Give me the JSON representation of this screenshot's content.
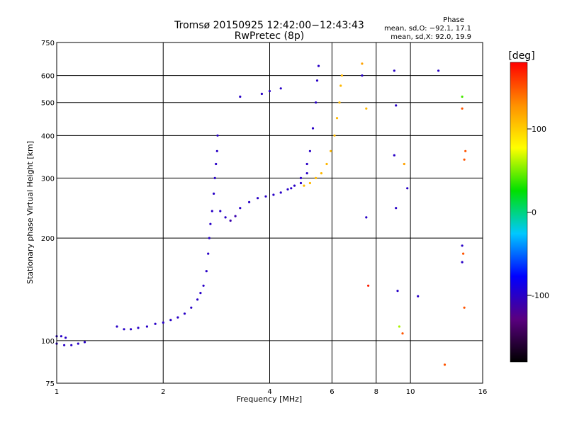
{
  "chart_data": {
    "type": "scatter",
    "title": "Tromsø 20150925 12:42:00−12:43:43",
    "subtitle": "RwPretec (8p)",
    "xlabel": "Frequency [MHz]",
    "ylabel": "Stationary phase Virtual Height [km]",
    "x_scale": "log",
    "y_scale": "log",
    "xlim": [
      1,
      16
    ],
    "ylim": [
      75,
      750
    ],
    "x_ticks": [
      1,
      2,
      4,
      6,
      8,
      10,
      16
    ],
    "y_ticks": [
      75,
      100,
      200,
      300,
      400,
      500,
      600,
      750
    ],
    "grid": true,
    "phase_box": {
      "title": "Phase",
      "line_o": "mean, sd,O: −92.1, 17.1",
      "line_x": "mean, sd,X:  92.0, 19.9"
    },
    "colorbar": {
      "label": "[deg]",
      "ticks": [
        100,
        0,
        -100
      ],
      "range": [
        -180,
        180
      ],
      "colors": [
        "#000000",
        "#5a0080",
        "#0000ff",
        "#00c8ff",
        "#00e000",
        "#ffff00",
        "#ff9000",
        "#ff0000"
      ]
    },
    "series": [
      {
        "name": "",
        "points": [
          [
            1.0,
            103,
            -100
          ],
          [
            1.03,
            103,
            -100
          ],
          [
            1.06,
            102,
            -100
          ],
          [
            1.0,
            98,
            -100
          ],
          [
            1.05,
            97,
            -100
          ],
          [
            1.1,
            97,
            -100
          ],
          [
            1.15,
            98,
            -100
          ],
          [
            1.2,
            99,
            -100
          ],
          [
            1.48,
            110,
            -100
          ],
          [
            1.55,
            108,
            -100
          ],
          [
            1.62,
            108,
            -100
          ],
          [
            1.7,
            109,
            -100
          ],
          [
            1.8,
            110,
            -100
          ],
          [
            1.9,
            112,
            -100
          ],
          [
            2.0,
            113,
            -100
          ],
          [
            2.1,
            115,
            -100
          ],
          [
            2.2,
            117,
            -100
          ],
          [
            2.3,
            120,
            -100
          ],
          [
            2.4,
            125,
            -100
          ],
          [
            2.5,
            132,
            -100
          ],
          [
            2.55,
            138,
            -100
          ],
          [
            2.6,
            145,
            -100
          ],
          [
            2.65,
            160,
            -100
          ],
          [
            2.68,
            180,
            -100
          ],
          [
            2.7,
            200,
            -100
          ],
          [
            2.72,
            220,
            -100
          ],
          [
            2.75,
            240,
            -100
          ],
          [
            2.78,
            270,
            -100
          ],
          [
            2.8,
            300,
            -100
          ],
          [
            2.82,
            330,
            -100
          ],
          [
            2.84,
            360,
            -100
          ],
          [
            2.85,
            400,
            -100
          ],
          [
            2.9,
            240,
            -100
          ],
          [
            3.0,
            230,
            -100
          ],
          [
            3.1,
            225,
            -110
          ],
          [
            3.2,
            232,
            -110
          ],
          [
            3.3,
            245,
            -100
          ],
          [
            3.5,
            255,
            -100
          ],
          [
            3.7,
            262,
            -100
          ],
          [
            3.9,
            265,
            -100
          ],
          [
            4.1,
            268,
            -100
          ],
          [
            4.3,
            272,
            -100
          ],
          [
            4.5,
            278,
            -100
          ],
          [
            4.7,
            285,
            -100
          ],
          [
            4.9,
            300,
            -100
          ],
          [
            5.1,
            330,
            -100
          ],
          [
            5.2,
            360,
            -100
          ],
          [
            5.3,
            420,
            -100
          ],
          [
            5.4,
            500,
            -100
          ],
          [
            5.45,
            580,
            -100
          ],
          [
            5.5,
            640,
            -100
          ],
          [
            4.6,
            280,
            -100
          ],
          [
            4.9,
            290,
            -100
          ],
          [
            5.1,
            310,
            -100
          ],
          [
            3.3,
            520,
            -100
          ],
          [
            3.8,
            530,
            -100
          ],
          [
            4.0,
            540,
            -100
          ],
          [
            4.3,
            550,
            -100
          ],
          [
            5.0,
            285,
            110
          ],
          [
            5.2,
            290,
            110
          ],
          [
            5.4,
            300,
            110
          ],
          [
            5.6,
            310,
            110
          ],
          [
            5.8,
            330,
            110
          ],
          [
            5.95,
            360,
            110
          ],
          [
            6.1,
            400,
            110
          ],
          [
            6.2,
            450,
            110
          ],
          [
            6.3,
            500,
            110
          ],
          [
            6.35,
            560,
            110
          ],
          [
            6.4,
            600,
            110
          ],
          [
            7.3,
            650,
            120
          ],
          [
            7.5,
            480,
            110
          ],
          [
            7.3,
            600,
            -100
          ],
          [
            7.5,
            230,
            -100
          ],
          [
            7.6,
            145,
            170
          ],
          [
            9.0,
            620,
            -100
          ],
          [
            9.1,
            490,
            -100
          ],
          [
            9.0,
            350,
            -100
          ],
          [
            9.1,
            245,
            -100
          ],
          [
            9.2,
            140,
            -100
          ],
          [
            9.3,
            110,
            60
          ],
          [
            9.5,
            105,
            150
          ],
          [
            9.6,
            330,
            120
          ],
          [
            9.8,
            280,
            -100
          ],
          [
            10.5,
            135,
            -100
          ],
          [
            12.0,
            620,
            -100
          ],
          [
            12.5,
            85,
            150
          ],
          [
            14.0,
            520,
            40
          ],
          [
            14.0,
            480,
            150
          ],
          [
            14.2,
            340,
            150
          ],
          [
            14.0,
            190,
            -100
          ],
          [
            14.1,
            180,
            150
          ],
          [
            14.0,
            170,
            -100
          ],
          [
            14.2,
            125,
            150
          ],
          [
            14.3,
            360,
            150
          ]
        ]
      }
    ]
  }
}
